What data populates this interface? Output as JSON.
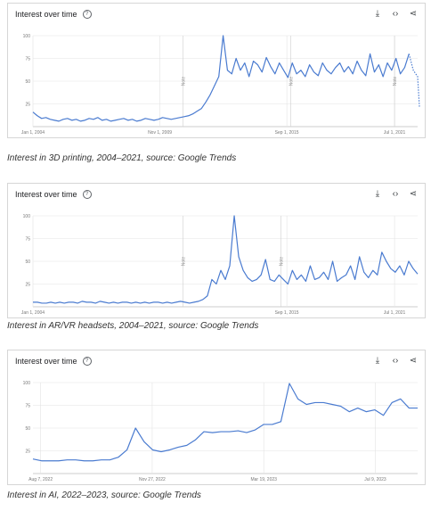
{
  "cards": [
    {
      "title": "Interest over time",
      "caption": "Interest in 3D printing, 2004–2021, source: Google Trends"
    },
    {
      "title": "Interest over time",
      "caption": "Interest in AR/VR headsets, 2004–2021, source: Google Trends"
    },
    {
      "title": "Interest over time",
      "caption": "Interest in AI, 2022–2023, source: Google Trends"
    }
  ],
  "icons": {
    "help": "help-circle-icon",
    "download": "download-icon",
    "embed": "embed-code-icon",
    "share": "share-icon"
  },
  "colors": {
    "line": "#4a7bd0",
    "grid": "#e3e3e3",
    "axis": "#9e9e9e"
  },
  "chart_data": [
    {
      "type": "line",
      "title": "Interest over time",
      "xlabel": "",
      "ylabel": "",
      "ylim": [
        0,
        100
      ],
      "y_ticks": [
        "100",
        "75",
        "50",
        "25"
      ],
      "x_ticks": [
        "Jan 1, 2004",
        "Nov 1, 2009",
        "Sep 1, 2015",
        "Jul 1, 2021"
      ],
      "x_tick_pos": [
        0,
        0.33,
        0.66,
        0.94
      ],
      "notes": [
        {
          "label": "Note",
          "pos": 0.39
        },
        {
          "label": "Note",
          "pos": 0.67
        },
        {
          "label": "Note",
          "pos": 0.94
        }
      ],
      "partial_from": 0.985,
      "values": [
        16,
        12,
        9,
        10,
        8,
        7,
        6,
        8,
        9,
        7,
        8,
        6,
        7,
        9,
        8,
        10,
        7,
        8,
        6,
        7,
        8,
        9,
        7,
        8,
        6,
        7,
        9,
        8,
        7,
        8,
        10,
        9,
        8,
        9,
        10,
        11,
        12,
        14,
        17,
        20,
        27,
        35,
        45,
        55,
        100,
        62,
        58,
        75,
        62,
        70,
        55,
        72,
        68,
        60,
        76,
        66,
        58,
        70,
        62,
        54,
        70,
        58,
        62,
        55,
        68,
        60,
        56,
        70,
        62,
        58,
        65,
        70,
        60,
        66,
        58,
        72,
        62,
        56,
        80,
        60,
        68,
        55,
        70,
        62,
        75,
        58,
        65,
        80,
        62,
        55
      ]
    },
    {
      "type": "line",
      "title": "Interest over time",
      "xlabel": "",
      "ylabel": "",
      "ylim": [
        0,
        100
      ],
      "y_ticks": [
        "100",
        "75",
        "50",
        "25"
      ],
      "x_ticks": [
        "Jan 1, 2004",
        "Sep 1, 2015",
        "Jul 1, 2021"
      ],
      "x_tick_pos": [
        0,
        0.66,
        0.94
      ],
      "notes": [
        {
          "label": "Note",
          "pos": 0.39
        },
        {
          "label": "Note",
          "pos": 0.645
        }
      ],
      "partial_from": null,
      "values": [
        5,
        5,
        4,
        4,
        5,
        4,
        5,
        4,
        5,
        5,
        4,
        6,
        5,
        5,
        4,
        6,
        5,
        4,
        5,
        4,
        5,
        5,
        4,
        5,
        4,
        5,
        4,
        5,
        5,
        4,
        5,
        4,
        5,
        6,
        5,
        4,
        5,
        6,
        8,
        12,
        30,
        25,
        40,
        30,
        45,
        100,
        55,
        40,
        32,
        28,
        30,
        35,
        52,
        30,
        28,
        35,
        30,
        25,
        40,
        30,
        35,
        28,
        45,
        30,
        32,
        38,
        30,
        50,
        28,
        32,
        35,
        45,
        30,
        55,
        38,
        32,
        40,
        35,
        60,
        50,
        42,
        38,
        45,
        35,
        50,
        42,
        36
      ]
    },
    {
      "type": "line",
      "title": "Interest over time",
      "xlabel": "",
      "ylabel": "",
      "ylim": [
        0,
        100
      ],
      "y_ticks": [
        "100",
        "75",
        "50",
        "25"
      ],
      "x_ticks": [
        "Aug 7, 2022",
        "Nov 27, 2022",
        "Mar 19, 2023",
        "Jul 9, 2023"
      ],
      "x_tick_pos": [
        0.02,
        0.31,
        0.6,
        0.89
      ],
      "notes": [],
      "partial_from": null,
      "values": [
        16,
        14,
        14,
        14,
        15,
        15,
        14,
        14,
        15,
        15,
        18,
        26,
        50,
        35,
        26,
        24,
        26,
        29,
        31,
        37,
        46,
        45,
        46,
        46,
        47,
        45,
        48,
        54,
        54,
        57,
        99,
        82,
        76,
        78,
        78,
        76,
        74,
        68,
        72,
        68,
        70,
        64,
        78,
        82,
        72,
        72
      ]
    }
  ]
}
